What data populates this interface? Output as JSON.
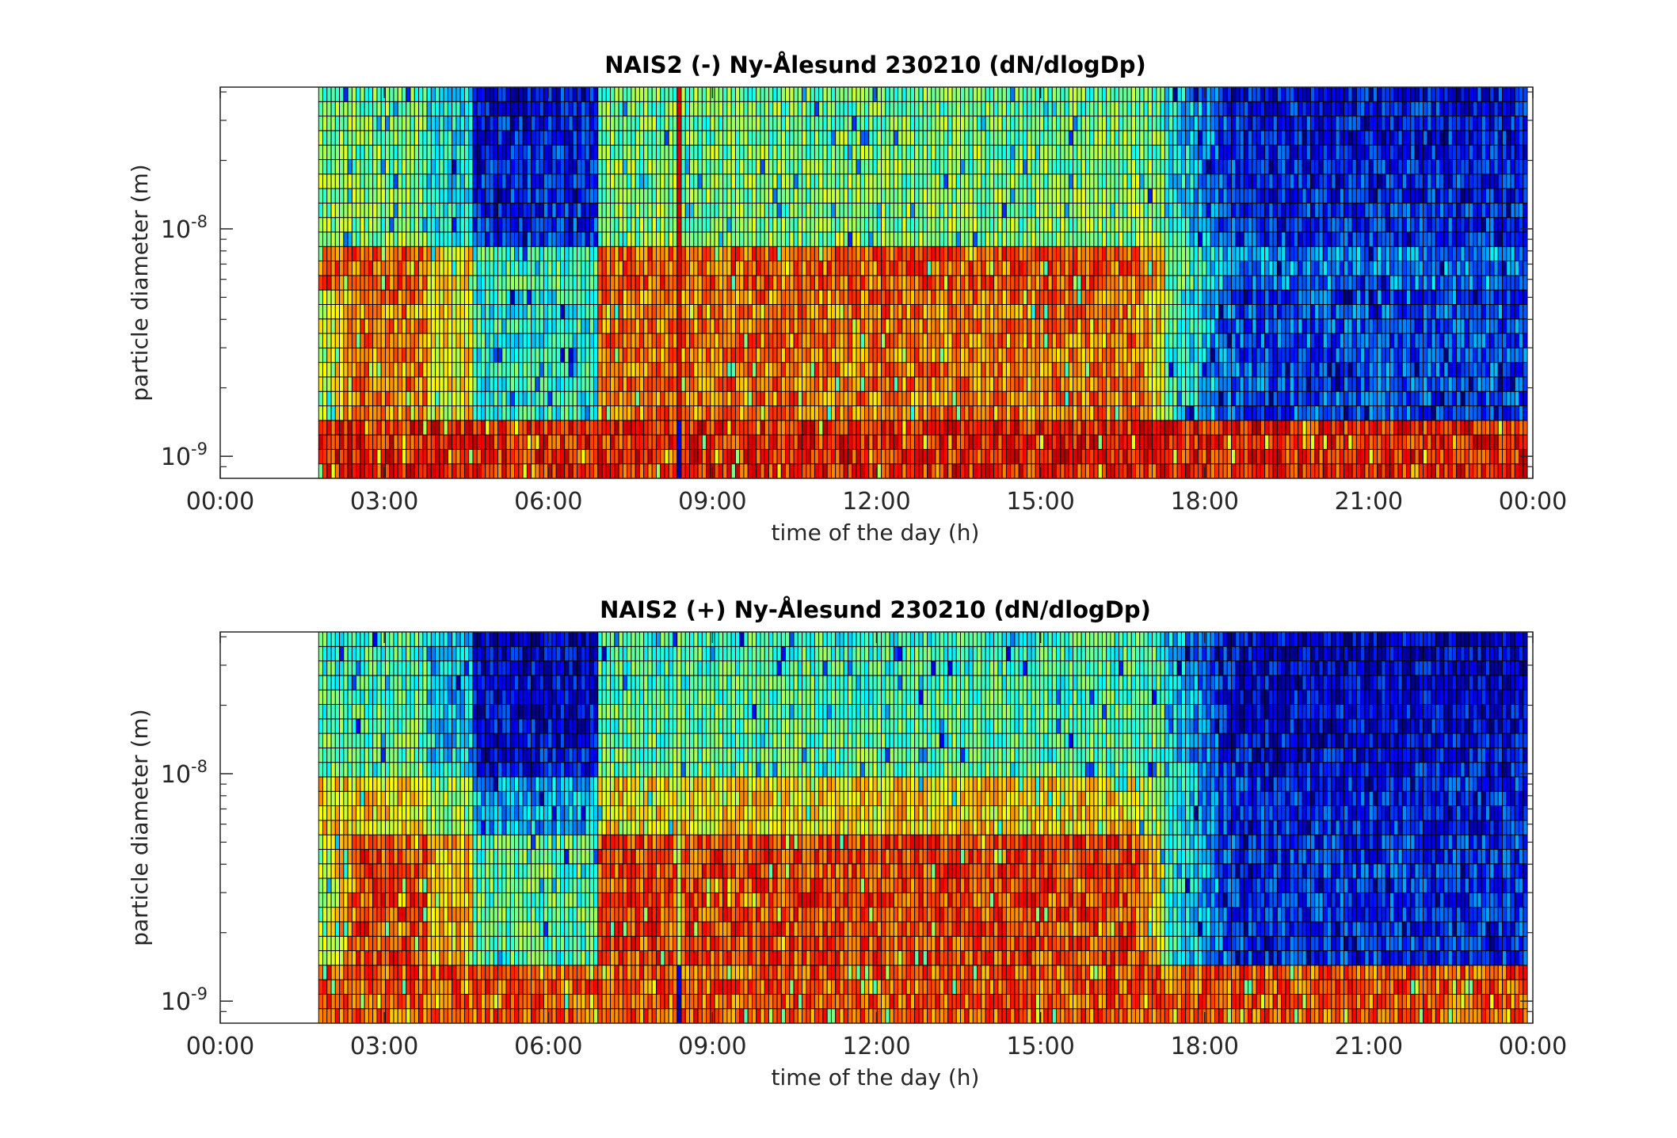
{
  "figure": {
    "background": "#ffffff",
    "colormap": "jet",
    "grid_line_color": "#000000"
  },
  "chart_data": [
    {
      "type": "heatmap",
      "title": "NAIS2 (-) Ny-Ålesund 230210 (dN/dlogDp)",
      "xlabel": "time of the day (h)",
      "ylabel": "particle diameter (m)",
      "xlim": [
        0,
        24
      ],
      "ylim": [
        8e-10,
        4.2e-08
      ],
      "y_scale": "log",
      "x_ticks": [
        0,
        3,
        6,
        9,
        12,
        15,
        18,
        21,
        24
      ],
      "x_tick_labels": [
        "00:00",
        "03:00",
        "06:00",
        "09:00",
        "12:00",
        "15:00",
        "18:00",
        "21:00",
        "00:00"
      ],
      "y_ticks": [
        1e-09,
        1e-08
      ],
      "y_tick_labels": [
        {
          "base": "10",
          "exp": "-9"
        },
        {
          "base": "10",
          "exp": "-8"
        }
      ],
      "data_start_hour": 1.8,
      "data_end_hour": 23.9,
      "bins": 27,
      "diameter_range_m": [
        8e-10,
        4.2e-08
      ],
      "spike_hour": 8.4,
      "features": [
        {
          "level": 0.86,
          "hours": [
            1.8,
            23.9
          ],
          "diameter_m": [
            8e-10,
            1.5e-09
          ],
          "note": "persistent high concentration band"
        },
        {
          "level": 0.74,
          "hours": [
            1.8,
            17.0
          ],
          "diameter_m": [
            1.5e-09,
            5e-09
          ],
          "note": "elevated daytime concentration"
        },
        {
          "level": 0.82,
          "hours": [
            1.8,
            17.0
          ],
          "diameter_m": [
            5e-09,
            8e-09
          ],
          "note": "red streaks"
        },
        {
          "level": 0.2,
          "hours": [
            4.6,
            6.8
          ],
          "diameter_m": [
            1.5e-09,
            3e-08
          ],
          "note": "low concentration"
        },
        {
          "level": 0.2,
          "hours": [
            18.5,
            23.9
          ],
          "diameter_m": [
            1.5e-09,
            3e-08
          ],
          "note": "low concentration"
        }
      ]
    },
    {
      "type": "heatmap",
      "title": "NAIS2 (+) Ny-Ålesund 230210 (dN/dlogDp)",
      "xlabel": "time of the day (h)",
      "ylabel": "particle diameter (m)",
      "xlim": [
        0,
        24
      ],
      "ylim": [
        8e-10,
        4.2e-08
      ],
      "y_scale": "log",
      "x_ticks": [
        0,
        3,
        6,
        9,
        12,
        15,
        18,
        21,
        24
      ],
      "x_tick_labels": [
        "00:00",
        "03:00",
        "06:00",
        "09:00",
        "12:00",
        "15:00",
        "18:00",
        "21:00",
        "00:00"
      ],
      "y_ticks": [
        1e-09,
        1e-08
      ],
      "y_tick_labels": [
        {
          "base": "10",
          "exp": "-9"
        },
        {
          "base": "10",
          "exp": "-8"
        }
      ],
      "data_start_hour": 1.8,
      "data_end_hour": 23.9,
      "bins": 27,
      "diameter_range_m": [
        8e-10,
        4.2e-08
      ],
      "spike_hour": 8.4,
      "features": [
        {
          "level": 0.8,
          "hours": [
            1.8,
            23.9
          ],
          "diameter_m": [
            8e-10,
            1.5e-09
          ],
          "note": "high concentration band"
        },
        {
          "level": 0.78,
          "hours": [
            1.8,
            17.0
          ],
          "diameter_m": [
            2e-09,
            5e-09
          ],
          "note": "elevated concentration"
        },
        {
          "level": 0.18,
          "hours": [
            4.6,
            6.8
          ],
          "diameter_m": [
            1.5e-09,
            3e-08
          ],
          "note": "low concentration"
        },
        {
          "level": 0.18,
          "hours": [
            18.5,
            23.9
          ],
          "diameter_m": [
            1.5e-09,
            3e-08
          ],
          "note": "low concentration"
        }
      ]
    }
  ]
}
